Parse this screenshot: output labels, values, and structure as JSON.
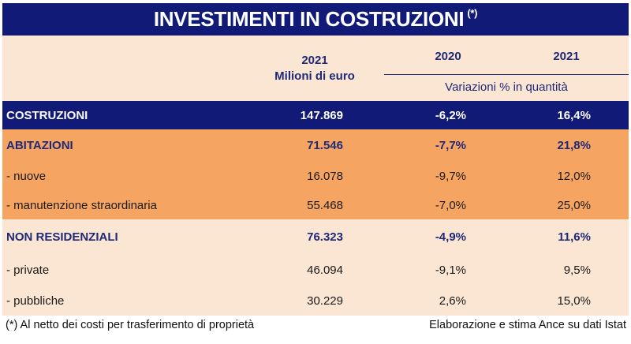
{
  "title": "INVESTIMENTI IN COSTRUZIONI",
  "title_note": "(*)",
  "header": {
    "col1_year": "2021",
    "col1_unit": "Milioni di euro",
    "col2_year": "2020",
    "col3_year": "2021",
    "variations_label": "Variazioni % in quantità"
  },
  "rows": [
    {
      "label": "COSTRUZIONI",
      "v2021": "147.869",
      "var2020": "-6,2%",
      "var2021": "16,4%"
    },
    {
      "label": "ABITAZIONI",
      "v2021": "71.546",
      "var2020": "-7,7%",
      "var2021": "21,8%"
    },
    {
      "label": " - nuove",
      "v2021": "16.078",
      "var2020": "-9,7%",
      "var2021": "12,0%"
    },
    {
      "label": " - manutenzione straordinaria",
      "v2021": "55.468",
      "var2020": "-7,0%",
      "var2021": "25,0%"
    },
    {
      "label": "NON RESIDENZIALI",
      "v2021": "76.323",
      "var2020": "-4,9%",
      "var2021": "11,6%"
    },
    {
      "label": " - private",
      "v2021": "46.094",
      "var2020": "-9,1%",
      "var2021": "9,5%"
    },
    {
      "label": " - pubbliche",
      "v2021": "30.229",
      "var2020": "2,6%",
      "var2021": "15,0%"
    }
  ],
  "footer": {
    "note": "(*) Al netto dei costi per trasferimento di proprietà",
    "source": "Elaborazione e stima Ance su dati Istat"
  },
  "colors": {
    "navy": "#121a78",
    "orange": "#f5a462",
    "peach": "#fbe6d3"
  }
}
